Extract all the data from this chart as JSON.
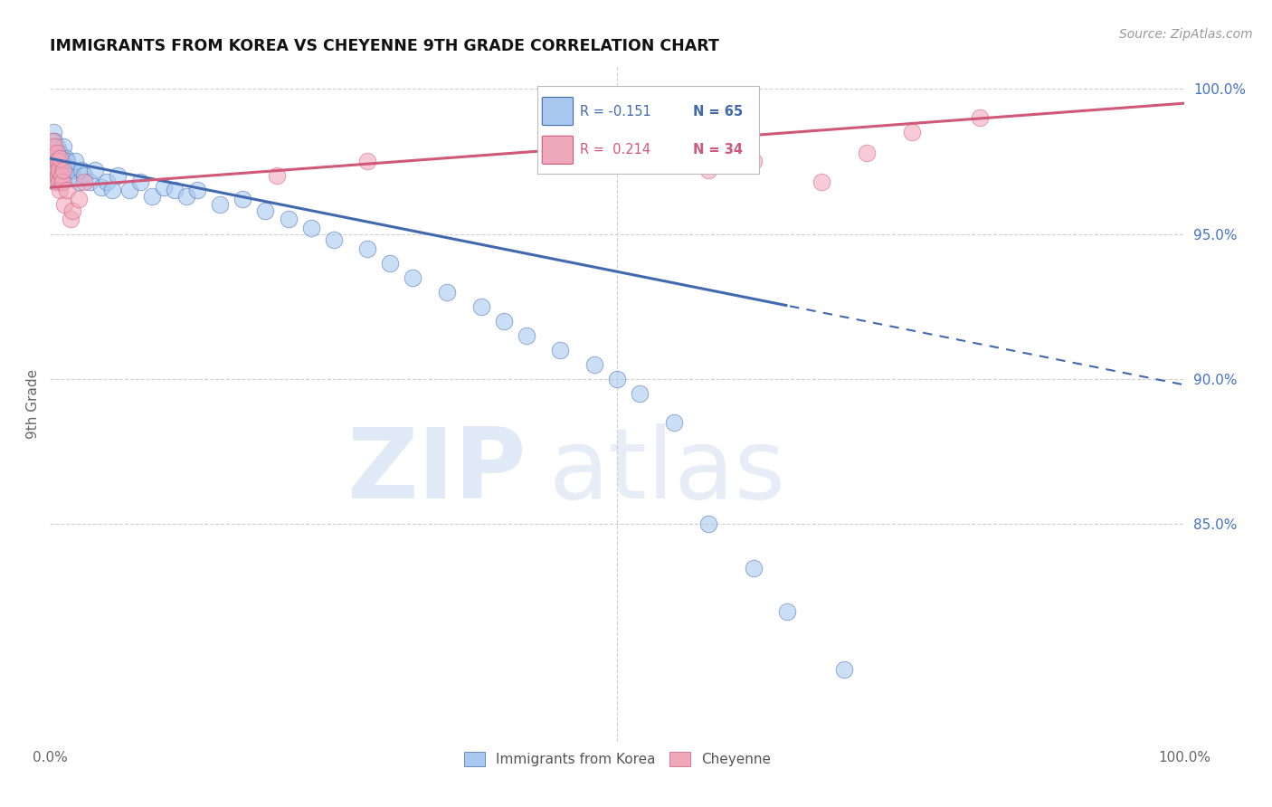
{
  "title": "IMMIGRANTS FROM KOREA VS CHEYENNE 9TH GRADE CORRELATION CHART",
  "source": "Source: ZipAtlas.com",
  "ylabel": "9th Grade",
  "legend_blue_r": "R = -0.151",
  "legend_blue_n": "N = 65",
  "legend_pink_r": "R =  0.214",
  "legend_pink_n": "N = 34",
  "legend_label_blue": "Immigrants from Korea",
  "legend_label_pink": "Cheyenne",
  "blue_color": "#a8c8f0",
  "pink_color": "#f0a8bc",
  "trendline_blue_color": "#4169b0",
  "trendline_pink_color": "#d05878",
  "xlim": [
    0.0,
    1.0
  ],
  "ylim": [
    0.775,
    1.008
  ],
  "grid_color": "#d0d0d0",
  "background_color": "#ffffff",
  "right_tick_color": "#4472c4",
  "blue_x": [
    0.001,
    0.002,
    0.003,
    0.003,
    0.004,
    0.004,
    0.005,
    0.005,
    0.006,
    0.006,
    0.007,
    0.007,
    0.008,
    0.008,
    0.009,
    0.009,
    0.01,
    0.01,
    0.011,
    0.012,
    0.013,
    0.014,
    0.015,
    0.016,
    0.018,
    0.02,
    0.022,
    0.025,
    0.028,
    0.03,
    0.035,
    0.04,
    0.045,
    0.05,
    0.055,
    0.06,
    0.07,
    0.08,
    0.09,
    0.1,
    0.11,
    0.12,
    0.13,
    0.15,
    0.17,
    0.19,
    0.21,
    0.23,
    0.25,
    0.28,
    0.3,
    0.32,
    0.35,
    0.38,
    0.4,
    0.42,
    0.45,
    0.48,
    0.5,
    0.52,
    0.55,
    0.58,
    0.62,
    0.65,
    0.7
  ],
  "blue_y": [
    0.976,
    0.98,
    0.975,
    0.985,
    0.978,
    0.982,
    0.97,
    0.976,
    0.974,
    0.98,
    0.972,
    0.978,
    0.968,
    0.975,
    0.972,
    0.978,
    0.97,
    0.976,
    0.975,
    0.98,
    0.972,
    0.976,
    0.975,
    0.973,
    0.97,
    0.972,
    0.975,
    0.968,
    0.972,
    0.97,
    0.968,
    0.972,
    0.966,
    0.968,
    0.965,
    0.97,
    0.965,
    0.968,
    0.963,
    0.966,
    0.965,
    0.963,
    0.965,
    0.96,
    0.962,
    0.958,
    0.955,
    0.952,
    0.948,
    0.945,
    0.94,
    0.935,
    0.93,
    0.925,
    0.92,
    0.915,
    0.91,
    0.905,
    0.9,
    0.895,
    0.885,
    0.85,
    0.835,
    0.82,
    0.8
  ],
  "pink_x": [
    0.001,
    0.002,
    0.002,
    0.003,
    0.003,
    0.004,
    0.004,
    0.005,
    0.005,
    0.006,
    0.006,
    0.007,
    0.007,
    0.008,
    0.008,
    0.009,
    0.009,
    0.01,
    0.011,
    0.012,
    0.013,
    0.015,
    0.018,
    0.02,
    0.025,
    0.03,
    0.2,
    0.28,
    0.58,
    0.62,
    0.68,
    0.72,
    0.76,
    0.82
  ],
  "pink_y": [
    0.978,
    0.975,
    0.982,
    0.976,
    0.97,
    0.98,
    0.972,
    0.968,
    0.974,
    0.972,
    0.978,
    0.97,
    0.975,
    0.968,
    0.972,
    0.976,
    0.965,
    0.97,
    0.968,
    0.972,
    0.96,
    0.965,
    0.955,
    0.958,
    0.962,
    0.968,
    0.97,
    0.975,
    0.972,
    0.975,
    0.968,
    0.978,
    0.985,
    0.99
  ]
}
